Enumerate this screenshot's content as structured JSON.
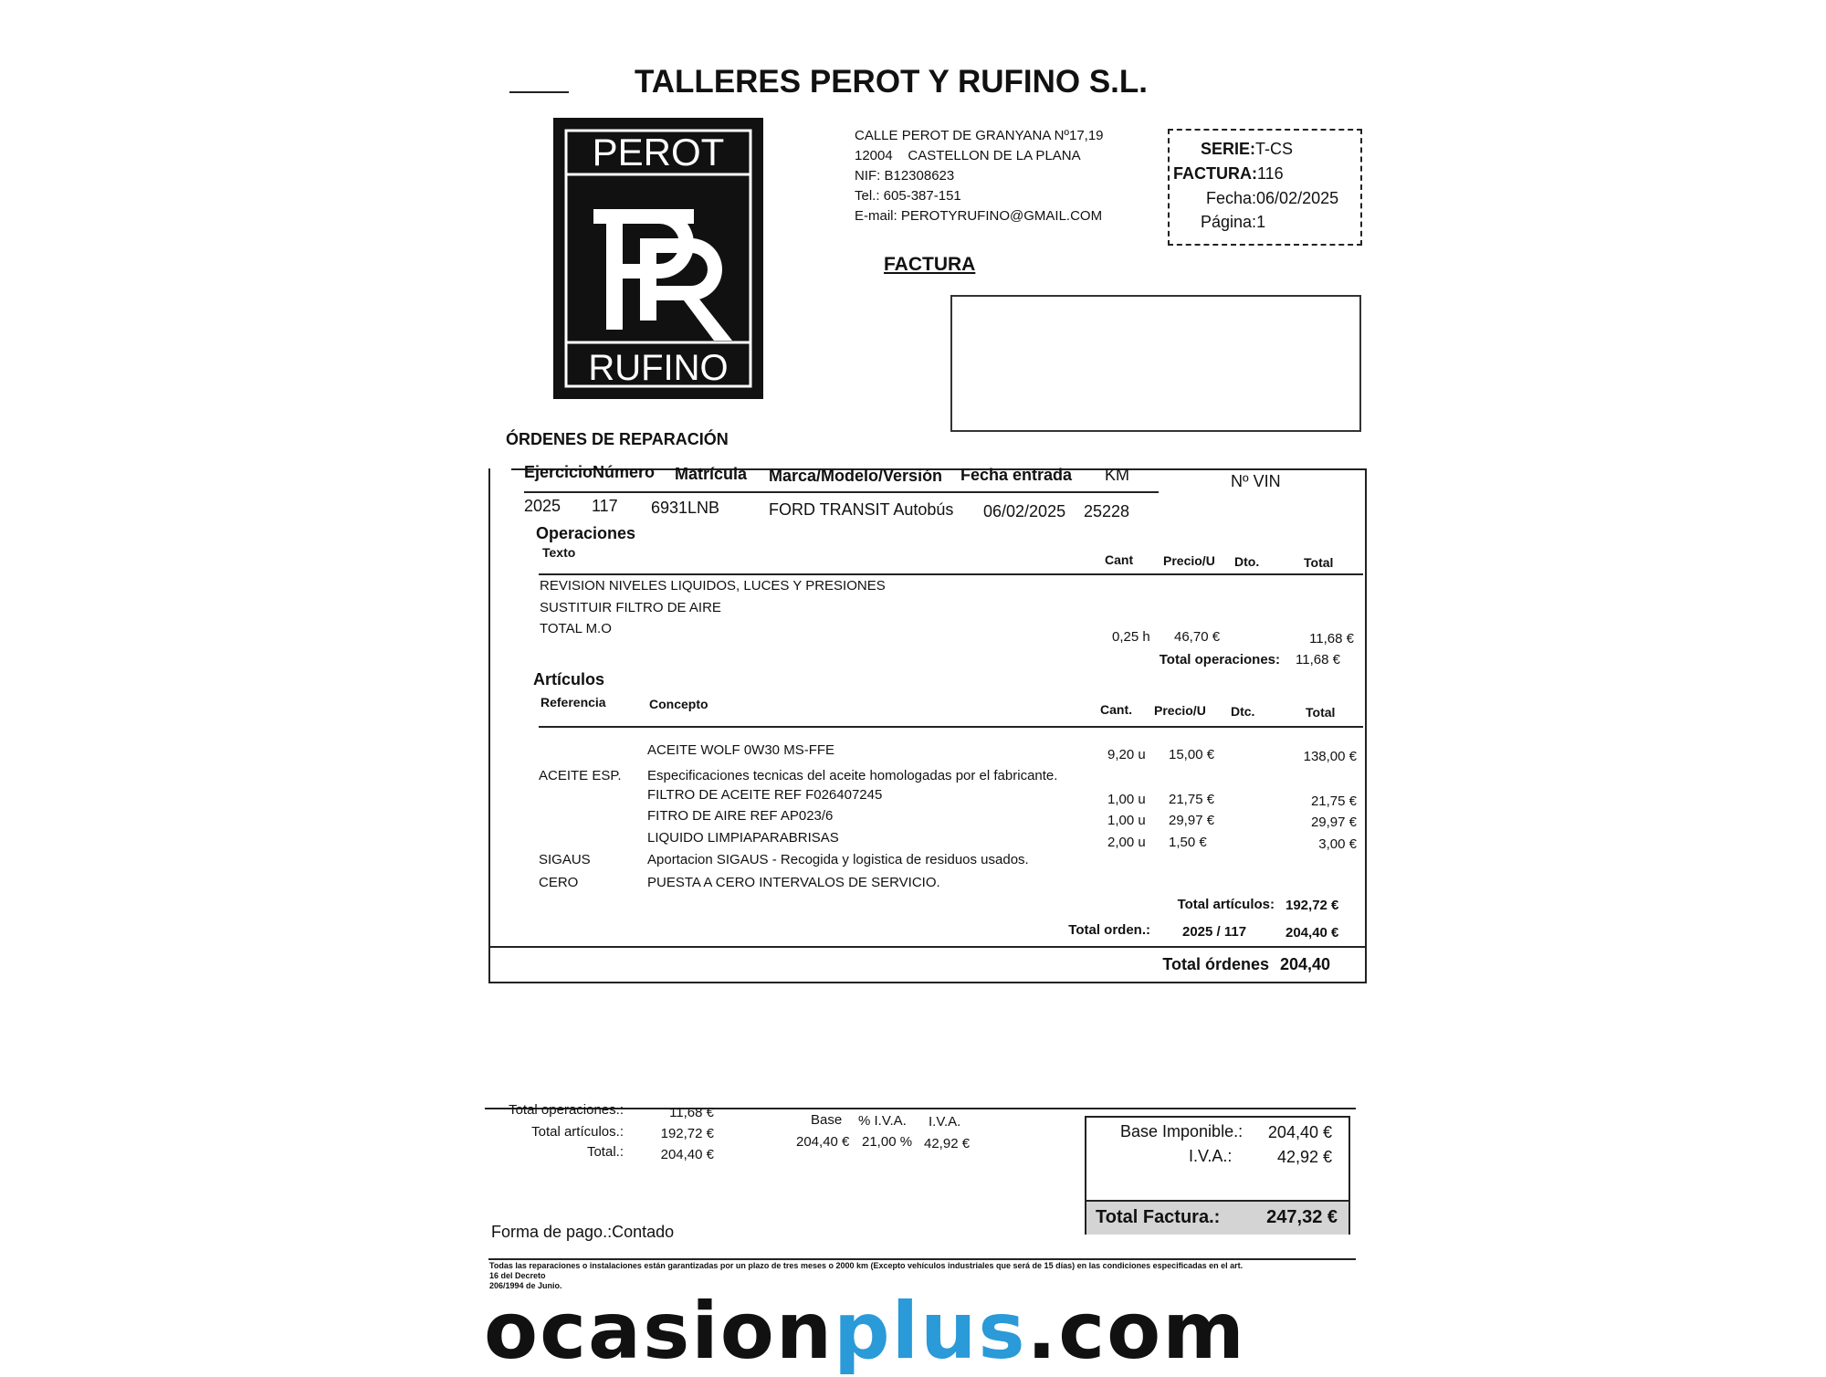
{
  "company": {
    "title": "TALLERES PEROT Y RUFINO S.L.",
    "logo_top": "PEROT",
    "logo_monogram": "PR",
    "logo_bottom": "RUFINO",
    "address_lines": [
      "CALLE PEROT DE GRANYANA Nº17,19",
      "12004    CASTELLON DE LA PLANA",
      "NIF: B12308623",
      "Tel.: 605-387-151",
      "E-mail: PEROTYRUFINO@GMAIL.COM"
    ]
  },
  "invoice_box": {
    "serie_label": "SERIE:",
    "serie": "T-CS",
    "factura_label": "FACTURA:",
    "factura": "116",
    "fecha_label": "Fecha:",
    "fecha": "06/02/2025",
    "pagina_label": "Página:",
    "pagina": "1"
  },
  "doc_heading": "FACTURA",
  "orders_heading": "ÓRDENES DE REPARACIÓN",
  "order": {
    "headers": [
      "Ejercicio",
      "Número",
      "Matrícula",
      "Marca/Modelo/Versión",
      "Fecha entrada",
      "KM",
      "Nº VIN"
    ],
    "values": [
      "2025",
      "117",
      "6931LNB",
      "FORD TRANSIT Autobús",
      "06/02/2025",
      "25228",
      ""
    ]
  },
  "operations": {
    "heading": "Operaciones",
    "headers": {
      "texto": "Texto",
      "cant": "Cant",
      "precio": "Precio/U",
      "dto": "Dto.",
      "total": "Total"
    },
    "lines": [
      "REVISION NIVELES LIQUIDOS, LUCES Y PRESIONES",
      "SUSTITUIR FILTRO DE AIRE",
      "TOTAL M.O"
    ],
    "mo": {
      "cant": "0,25 h",
      "precio": "46,70 €",
      "total": "11,68 €"
    },
    "total_label": "Total operaciones:",
    "total": "11,68 €"
  },
  "articles": {
    "heading": "Artículos",
    "headers": {
      "ref": "Referencia",
      "concepto": "Concepto",
      "cant": "Cant.",
      "precio": "Precio/U",
      "dto": "Dtc.",
      "total": "Total"
    },
    "rows": [
      {
        "ref": "",
        "concepto": "ACEITE WOLF 0W30  MS-FFE",
        "cant": "9,20 u",
        "precio": "15,00 €",
        "total": "138,00 €"
      },
      {
        "ref": "ACEITE ESP.",
        "concepto": "Especificaciones tecnicas del aceite homologadas por el fabricante.",
        "cant": "",
        "precio": "",
        "total": ""
      },
      {
        "ref": "",
        "concepto": "FILTRO DE ACEITE   REF F026407245",
        "cant": "1,00 u",
        "precio": "21,75 €",
        "total": "21,75 €"
      },
      {
        "ref": "",
        "concepto": "FITRO DE AIRE   REF AP023/6",
        "cant": "1,00 u",
        "precio": "29,97 €",
        "total": "29,97 €"
      },
      {
        "ref": "",
        "concepto": "LIQUIDO LIMPIAPARABRISAS",
        "cant": "2,00 u",
        "precio": "1,50 €",
        "total": "3,00 €"
      },
      {
        "ref": "SIGAUS",
        "concepto": "Aportacion SIGAUS - Recogida y logistica de residuos usados.",
        "cant": "",
        "precio": "",
        "total": ""
      },
      {
        "ref": "CERO",
        "concepto": "PUESTA A CERO INTERVALOS DE SERVICIO.",
        "cant": "",
        "precio": "",
        "total": ""
      }
    ],
    "total_label": "Total artículos:",
    "total": "192,72 €",
    "order_total_label": "Total orden.:",
    "order_ref": "2025 / 117",
    "order_total": "204,40 €"
  },
  "total_ordenes_label": "Total órdenes",
  "total_ordenes": "204,40",
  "summary": {
    "rows": [
      {
        "label": "Total operaciones.:",
        "value": "11,68 €"
      },
      {
        "label": "Total artículos.:",
        "value": "192,72 €"
      },
      {
        "label": "Total.:",
        "value": "204,40 €"
      }
    ],
    "tax_headers": [
      "Base",
      "% I.V.A.",
      "I.V.A."
    ],
    "tax_values": [
      "204,40 €",
      "21,00 %",
      "42,92 €"
    ],
    "base_label": "Base Imponible.:",
    "base": "204,40 €",
    "iva_label": "I.V.A.:",
    "iva": "42,92 €",
    "total_label": "Total Factura.:",
    "total": "247,32 €"
  },
  "payment": "Forma de pago.:Contado",
  "footnote": [
    "Todas las reparaciones o instalaciones están garantizadas por un plazo de tres meses o 2000 km (Excepto vehículos industriales que será de 15 días) en las condiciones especificadas en el art.",
    "16 del Decreto",
    "206/1994 de Junio."
  ],
  "watermark": {
    "part1": "ocasion",
    "part2": "plus",
    "part3": ".com",
    "accent": "#2a9ad8"
  }
}
